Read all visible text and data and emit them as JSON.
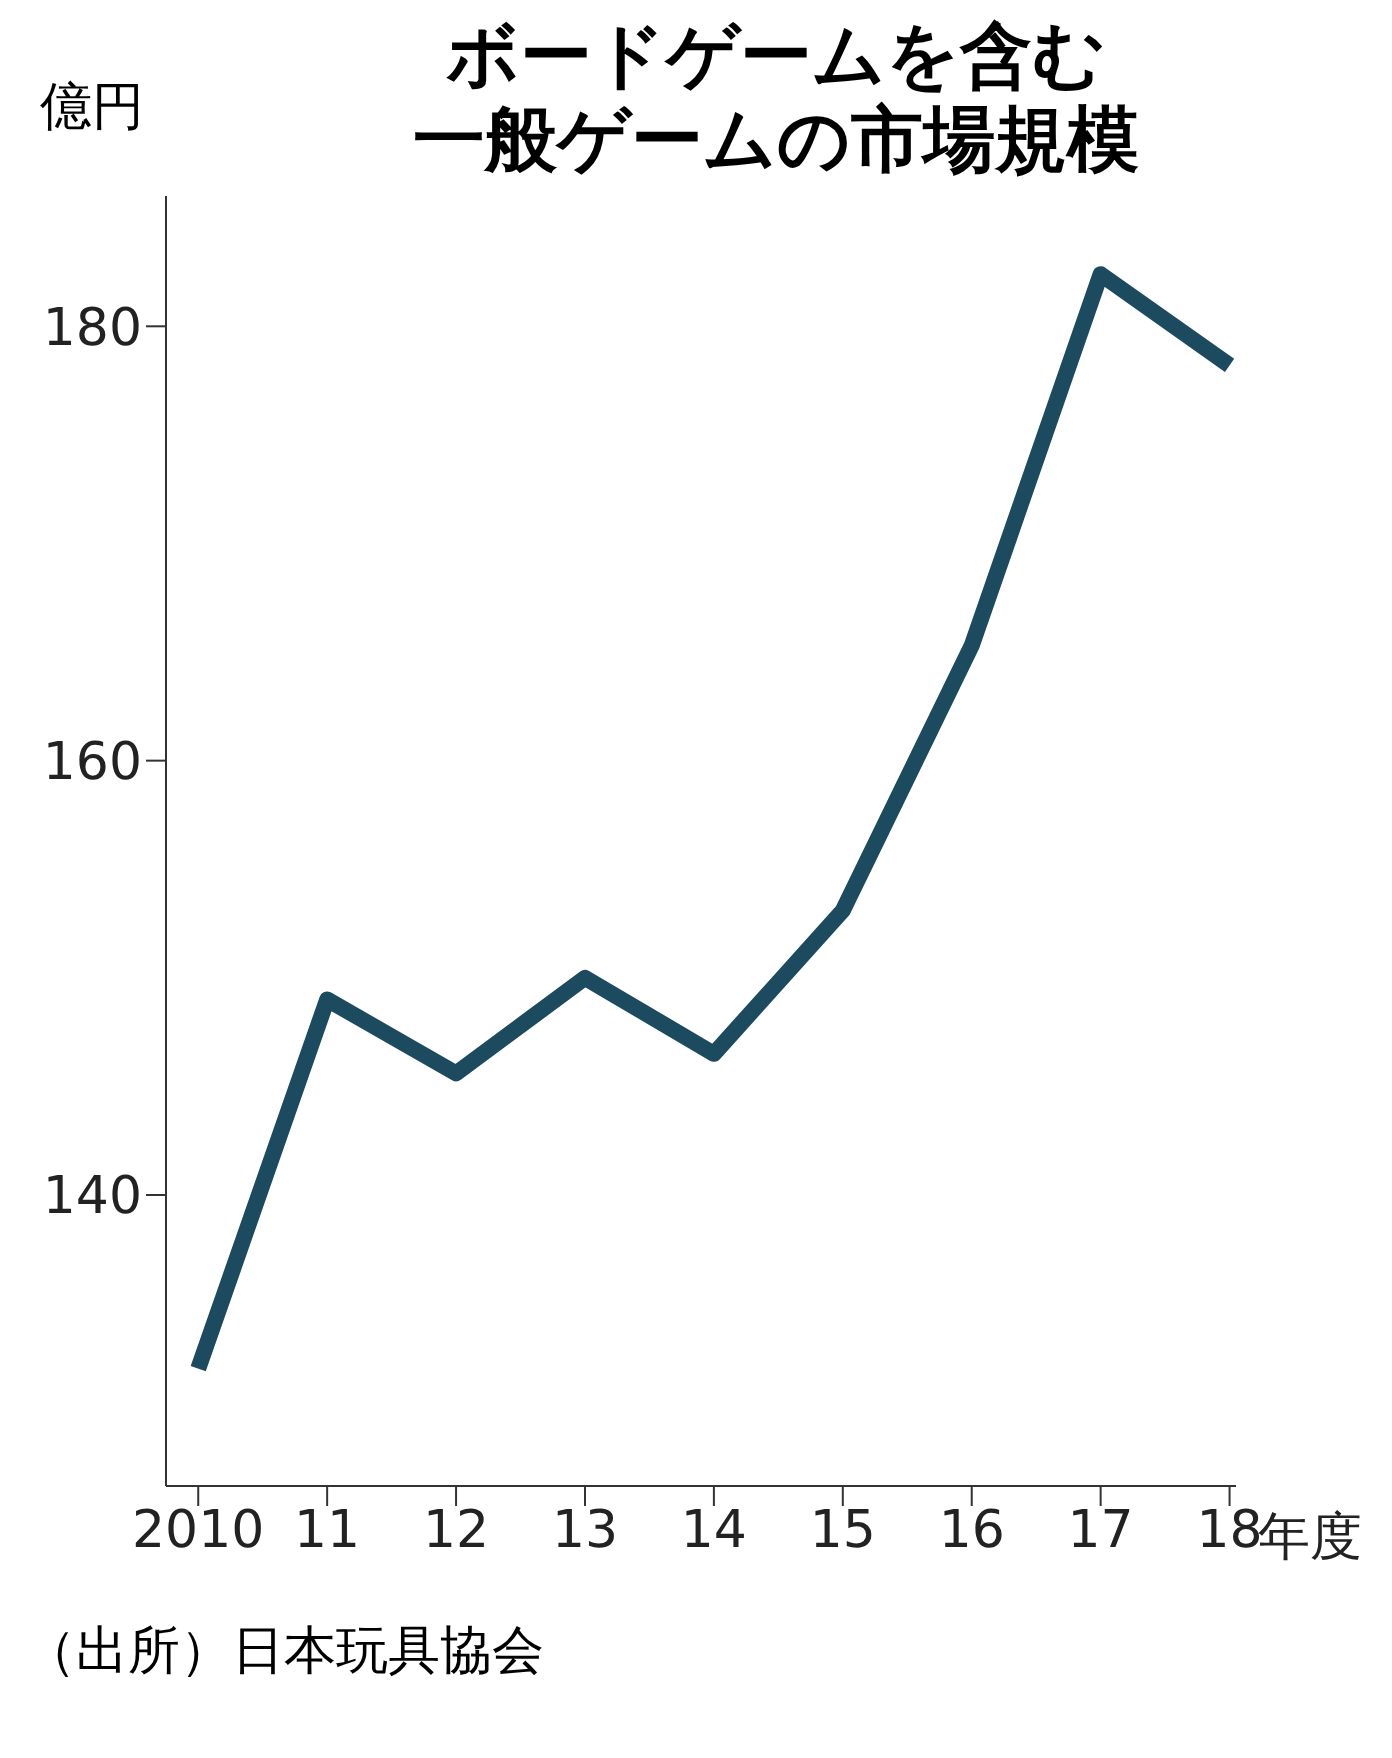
{
  "chart_data": {
    "type": "line",
    "title": "ボードゲームを含む",
    "subtitle": "一般ゲームの市場規模",
    "ylabel": "億円",
    "xlabel": "年度",
    "categories": [
      "2010",
      "11",
      "12",
      "13",
      "14",
      "15",
      "16",
      "17",
      "18"
    ],
    "series": [
      {
        "color": "#1c4a5e",
        "values": [
          132,
          149,
          145.6,
          150,
          146.5,
          153.1,
          165.3,
          182.4,
          178.2
        ]
      }
    ],
    "ylim": [
      126.6,
      186
    ],
    "yticks": [
      140,
      160,
      180
    ],
    "grid": false,
    "legend": false,
    "marker": "none",
    "line_style": "solid",
    "annotations": [
      "（出所）日本玩具協会"
    ]
  }
}
